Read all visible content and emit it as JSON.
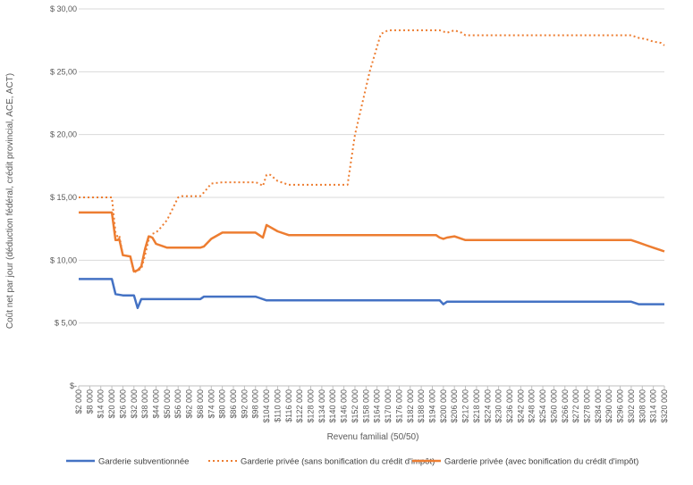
{
  "chart_data": {
    "type": "line",
    "title": "",
    "xlabel": "Revenu familial (50/50)",
    "ylabel": "Coût net par jour (déduction fédéral, crédit provincial, ACE, ACT)",
    "ylim": [
      0,
      30
    ],
    "xlim": [
      2000,
      320000
    ],
    "y_ticks": [
      0,
      5,
      10,
      15,
      20,
      25,
      30
    ],
    "y_tick_labels": [
      "$-",
      "$ 5,00",
      "$ 10,00",
      "$ 15,00",
      "$ 20,00",
      "$ 25,00",
      "$ 30,00"
    ],
    "x_tick_labels": [
      "$2 000",
      "$8 000",
      "$14 000",
      "$20 000",
      "$26 000",
      "$32 000",
      "$38 000",
      "$44 000",
      "$50 000",
      "$56 000",
      "$62 000",
      "$68 000",
      "$74 000",
      "$80 000",
      "$86 000",
      "$92 000",
      "$98 000",
      "$104 000",
      "$110 000",
      "$116 000",
      "$122 000",
      "$128 000",
      "$134 000",
      "$140 000",
      "$146 000",
      "$152 000",
      "$158 000",
      "$164 000",
      "$170 000",
      "$176 000",
      "$182 000",
      "$188 000",
      "$194 000",
      "$200 000",
      "$206 000",
      "$212 000",
      "$218 000",
      "$224 000",
      "$230 000",
      "$236 000",
      "$242 000",
      "$248 000",
      "$254 000",
      "$260 000",
      "$266 000",
      "$272 000",
      "$278 000",
      "$284 000",
      "$290 000",
      "$296 000",
      "$302 000",
      "$308 000",
      "$314 000",
      "$320 000"
    ],
    "grid": "horizontal",
    "legend_position": "bottom",
    "series": [
      {
        "name": "Garderie subventionnée",
        "color": "#4472C4",
        "style": "solid",
        "x": [
          2000,
          8000,
          14000,
          20000,
          22000,
          26000,
          30000,
          32000,
          34000,
          36000,
          38000,
          44000,
          50000,
          56000,
          62000,
          68000,
          70000,
          74000,
          80000,
          86000,
          92000,
          98000,
          100000,
          104000,
          110000,
          116000,
          122000,
          146000,
          164000,
          194000,
          198000,
          200000,
          202000,
          206000,
          212000,
          230000,
          260000,
          290000,
          302000,
          306000,
          310000,
          320000
        ],
        "y": [
          8.5,
          8.5,
          8.5,
          8.5,
          7.3,
          7.2,
          7.2,
          7.2,
          6.2,
          6.9,
          6.9,
          6.9,
          6.9,
          6.9,
          6.9,
          6.9,
          7.1,
          7.1,
          7.1,
          7.1,
          7.1,
          7.1,
          7.0,
          6.8,
          6.8,
          6.8,
          6.8,
          6.8,
          6.8,
          6.8,
          6.8,
          6.5,
          6.7,
          6.7,
          6.7,
          6.7,
          6.7,
          6.7,
          6.7,
          6.5,
          6.5,
          6.5
        ]
      },
      {
        "name": "Garderie privée (sans bonification du crédit d'impôt)",
        "color": "#ED7D31",
        "style": "dotted",
        "x": [
          2000,
          8000,
          14000,
          20000,
          22000,
          23000,
          24000,
          26000,
          30000,
          32000,
          34000,
          36000,
          38000,
          40000,
          42000,
          44000,
          46000,
          50000,
          56000,
          58000,
          62000,
          68000,
          70000,
          74000,
          80000,
          86000,
          92000,
          98000,
          100000,
          102000,
          104000,
          106000,
          110000,
          116000,
          122000,
          128000,
          134000,
          140000,
          146000,
          148000,
          150000,
          152000,
          156000,
          160000,
          164000,
          166000,
          170000,
          176000,
          182000,
          188000,
          194000,
          198000,
          202000,
          206000,
          210000,
          212000,
          218000,
          224000,
          230000,
          260000,
          290000,
          296000,
          302000,
          306000,
          310000,
          314000,
          318000,
          320000
        ],
        "y": [
          15.0,
          15.0,
          15.0,
          15.0,
          12.2,
          11.9,
          12.0,
          10.4,
          10.3,
          9.0,
          9.2,
          9.3,
          10.4,
          11.6,
          12.1,
          12.2,
          12.5,
          13.2,
          15.0,
          15.1,
          15.1,
          15.1,
          15.4,
          16.1,
          16.2,
          16.2,
          16.2,
          16.2,
          16.1,
          15.9,
          16.8,
          16.8,
          16.3,
          16.0,
          16.0,
          16.0,
          16.0,
          16.0,
          16.0,
          16.0,
          18.0,
          20.0,
          22.5,
          25.0,
          27.0,
          28.0,
          28.3,
          28.3,
          28.3,
          28.3,
          28.3,
          28.3,
          28.1,
          28.3,
          28.1,
          27.9,
          27.9,
          27.9,
          27.9,
          27.9,
          27.9,
          27.9,
          27.9,
          27.7,
          27.6,
          27.4,
          27.3,
          27.1
        ]
      },
      {
        "name": "Garderie privée (avec bonification du crédit d'impôt)",
        "color": "#ED7D31",
        "style": "solid",
        "x": [
          2000,
          8000,
          14000,
          20000,
          22000,
          23000,
          24000,
          26000,
          30000,
          32000,
          34000,
          36000,
          38000,
          40000,
          42000,
          44000,
          50000,
          56000,
          62000,
          68000,
          70000,
          74000,
          80000,
          86000,
          92000,
          98000,
          100000,
          102000,
          104000,
          110000,
          116000,
          122000,
          146000,
          164000,
          194000,
          196000,
          198000,
          200000,
          202000,
          206000,
          210000,
          212000,
          218000,
          224000,
          230000,
          260000,
          290000,
          296000,
          302000,
          306000,
          310000,
          314000,
          318000,
          320000
        ],
        "y": [
          13.8,
          13.8,
          13.8,
          13.8,
          11.6,
          11.6,
          11.7,
          10.4,
          10.3,
          9.1,
          9.2,
          9.5,
          10.9,
          11.9,
          11.8,
          11.3,
          11.0,
          11.0,
          11.0,
          11.0,
          11.1,
          11.7,
          12.2,
          12.2,
          12.2,
          12.2,
          12.0,
          11.8,
          12.8,
          12.3,
          12.0,
          12.0,
          12.0,
          12.0,
          12.0,
          12.0,
          11.8,
          11.7,
          11.8,
          11.9,
          11.7,
          11.6,
          11.6,
          11.6,
          11.6,
          11.6,
          11.6,
          11.6,
          11.6,
          11.4,
          11.2,
          11.0,
          10.8,
          10.7
        ]
      }
    ]
  }
}
